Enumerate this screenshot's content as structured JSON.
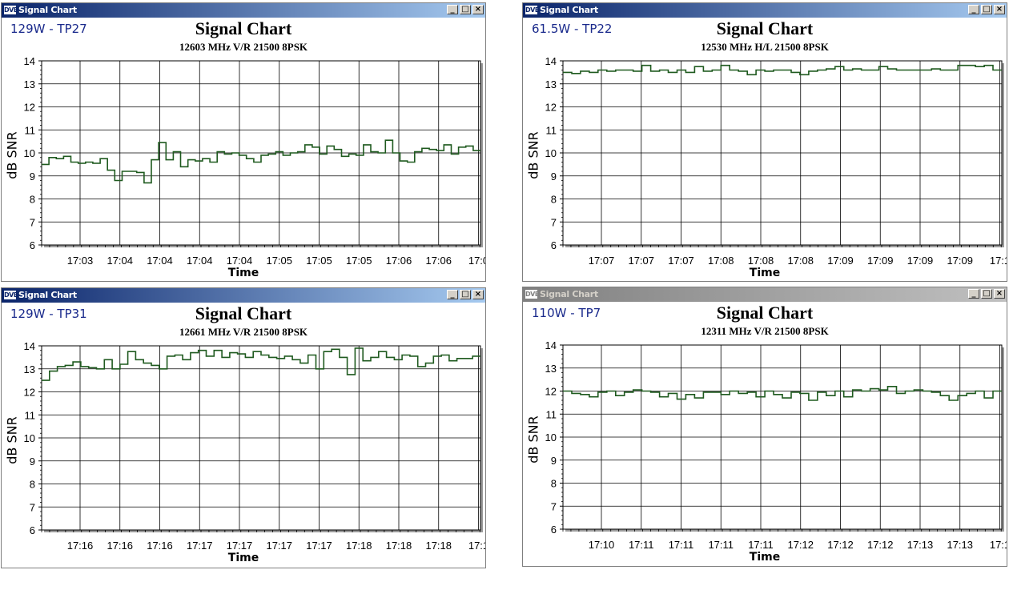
{
  "windows": [
    {
      "title": "Signal Chart",
      "app_icon": "DVB",
      "active": true,
      "satellite_label": "129W - TP27",
      "chart_data": {
        "type": "line",
        "title": "Signal Chart",
        "subtitle": "12603 MHz V/R 21500 8PSK",
        "xlabel": "Time",
        "ylabel": "dB SNR",
        "ylim": [
          6,
          14
        ],
        "yticks": [
          "6",
          "7",
          "8",
          "9",
          "10",
          "11",
          "12",
          "13",
          "14"
        ],
        "xticks": [
          "17:03",
          "17:04",
          "17:04",
          "17:04",
          "17:04",
          "17:05",
          "17:05",
          "17:05",
          "17:06",
          "17:06",
          "17:0"
        ],
        "grid": true,
        "series": [
          {
            "color": "#1f5a1f",
            "step": true,
            "values": [
              9.5,
              9.8,
              9.75,
              9.85,
              9.6,
              9.55,
              9.6,
              9.55,
              9.75,
              9.25,
              8.8,
              9.2,
              9.2,
              9.15,
              8.7,
              9.7,
              10.45,
              9.7,
              10.05,
              9.4,
              9.7,
              9.65,
              9.75,
              9.6,
              10.05,
              9.95,
              10.0,
              9.9,
              9.75,
              9.6,
              9.9,
              9.95,
              10.05,
              9.9,
              10.0,
              10.05,
              10.35,
              10.25,
              9.95,
              10.3,
              10.15,
              9.85,
              9.95,
              9.9,
              10.35,
              10.05,
              10.0,
              10.55,
              10.0,
              9.65,
              9.6,
              10.05,
              10.2,
              10.15,
              10.1,
              10.35,
              9.95,
              10.25,
              10.3,
              10.1
            ]
          }
        ]
      }
    },
    {
      "title": "Signal Chart",
      "app_icon": "DVB",
      "active": true,
      "satellite_label": "61.5W - TP22",
      "chart_data": {
        "type": "line",
        "title": "Signal Chart",
        "subtitle": "12530 MHz H/L 21500 8PSK",
        "xlabel": "Time",
        "ylabel": "dB SNR",
        "ylim": [
          6,
          14
        ],
        "yticks": [
          "6",
          "7",
          "8",
          "9",
          "10",
          "11",
          "12",
          "13",
          "14"
        ],
        "xticks": [
          "17:07",
          "17:07",
          "17:07",
          "17:08",
          "17:08",
          "17:08",
          "17:09",
          "17:09",
          "17:09",
          "17:09",
          "17:1"
        ],
        "grid": true,
        "series": [
          {
            "color": "#1f5a1f",
            "step": true,
            "values": [
              13.5,
              13.45,
              13.55,
              13.5,
              13.6,
              13.55,
              13.6,
              13.6,
              13.55,
              13.8,
              13.55,
              13.6,
              13.5,
              13.6,
              13.5,
              13.75,
              13.55,
              13.6,
              13.8,
              13.6,
              13.55,
              13.4,
              13.6,
              13.55,
              13.6,
              13.6,
              13.5,
              13.4,
              13.55,
              13.6,
              13.65,
              13.75,
              13.6,
              13.65,
              13.6,
              13.6,
              13.75,
              13.65,
              13.6,
              13.6,
              13.6,
              13.6,
              13.65,
              13.6,
              13.6,
              13.8,
              13.8,
              13.75,
              13.8,
              13.6
            ]
          }
        ]
      }
    },
    {
      "title": "Signal Chart",
      "app_icon": "DVB",
      "active": true,
      "satellite_label": "129W - TP31",
      "chart_data": {
        "type": "line",
        "title": "Signal Chart",
        "subtitle": "12661 MHz V/R 21500 8PSK",
        "xlabel": "Time",
        "ylabel": "dB SNR",
        "ylim": [
          6,
          14
        ],
        "yticks": [
          "6",
          "7",
          "8",
          "9",
          "10",
          "11",
          "12",
          "13",
          "14"
        ],
        "xticks": [
          "17:16",
          "17:16",
          "17:16",
          "17:17",
          "17:17",
          "17:17",
          "17:17",
          "17:18",
          "17:18",
          "17:18",
          "17:1"
        ],
        "grid": true,
        "series": [
          {
            "color": "#1f5a1f",
            "step": true,
            "values": [
              12.5,
              12.9,
              13.1,
              13.15,
              13.3,
              13.1,
              13.05,
              13.0,
              13.4,
              13.0,
              13.2,
              13.75,
              13.4,
              13.25,
              13.15,
              13.0,
              13.55,
              13.6,
              13.4,
              13.7,
              13.8,
              13.55,
              13.8,
              13.5,
              13.7,
              13.65,
              13.5,
              13.75,
              13.6,
              13.5,
              13.45,
              13.55,
              13.4,
              13.25,
              13.6,
              13.0,
              13.75,
              13.85,
              13.5,
              12.75,
              13.9,
              13.35,
              13.5,
              13.75,
              13.5,
              13.4,
              13.6,
              13.55,
              13.1,
              13.25,
              13.55,
              13.6,
              13.35,
              13.45,
              13.45,
              13.55
            ]
          }
        ]
      }
    },
    {
      "title": "Signal Chart",
      "app_icon": "DVB",
      "active": false,
      "satellite_label": "110W - TP7",
      "chart_data": {
        "type": "line",
        "title": "Signal Chart",
        "subtitle": "12311 MHz V/R 21500 8PSK",
        "xlabel": "Time",
        "ylabel": "dB SNR",
        "ylim": [
          6,
          14
        ],
        "yticks": [
          "6",
          "7",
          "8",
          "9",
          "10",
          "11",
          "12",
          "13",
          "14"
        ],
        "xticks": [
          "17:10",
          "17:11",
          "17:11",
          "17:11",
          "17:11",
          "17:12",
          "17:12",
          "17:12",
          "17:13",
          "17:13",
          "17:1"
        ],
        "grid": true,
        "series": [
          {
            "color": "#1f5a1f",
            "step": true,
            "values": [
              12.0,
              11.9,
              11.85,
              11.75,
              11.95,
              12.0,
              11.8,
              11.95,
              12.05,
              12.0,
              11.95,
              11.75,
              11.9,
              11.65,
              11.85,
              11.7,
              11.95,
              11.95,
              11.85,
              12.0,
              11.9,
              11.95,
              11.75,
              12.0,
              11.85,
              11.7,
              11.95,
              11.9,
              11.6,
              11.95,
              11.8,
              12.0,
              11.75,
              12.05,
              12.0,
              12.1,
              12.05,
              12.2,
              11.9,
              12.0,
              12.05,
              12.0,
              11.95,
              11.8,
              11.6,
              11.8,
              11.9,
              12.0,
              11.7,
              12.0
            ]
          }
        ]
      }
    }
  ]
}
